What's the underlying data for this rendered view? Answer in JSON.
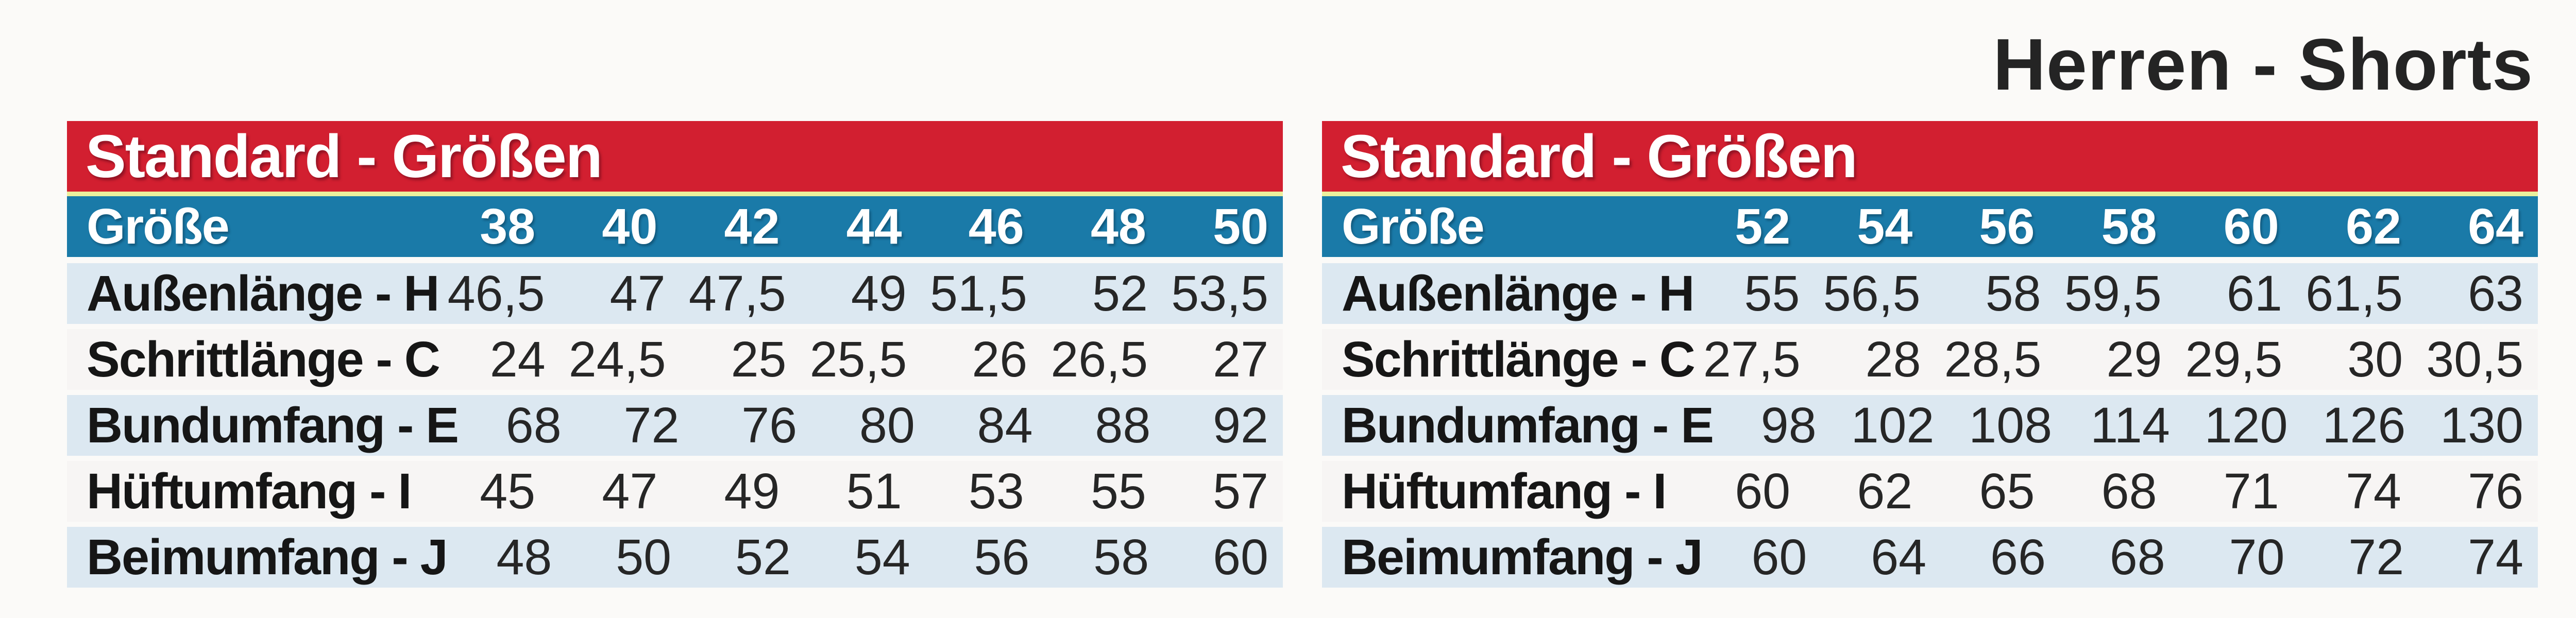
{
  "page_title": "Herren - Shorts",
  "colors": {
    "header_red": "#d21f30",
    "band_blue": "#1a7aa8",
    "divider_yellow": "#ecef9d",
    "row_lightblue": "#dce8f1",
    "row_white": "#f7f5f4",
    "page_bg": "#fbfaf8",
    "title_color": "#242424"
  },
  "tables": [
    {
      "header": "Standard - Größen",
      "size_label": "Größe",
      "sizes": [
        "38",
        "40",
        "42",
        "44",
        "46",
        "48",
        "50"
      ],
      "rows": [
        {
          "label": "Außenlänge - H",
          "values": [
            "46,5",
            "47",
            "47,5",
            "49",
            "51,5",
            "52",
            "53,5"
          ]
        },
        {
          "label": "Schrittlänge - C",
          "values": [
            "24",
            "24,5",
            "25",
            "25,5",
            "26",
            "26,5",
            "27"
          ]
        },
        {
          "label": "Bundumfang - E",
          "values": [
            "68",
            "72",
            "76",
            "80",
            "84",
            "88",
            "92"
          ]
        },
        {
          "label": "Hüftumfang - I",
          "values": [
            "45",
            "47",
            "49",
            "51",
            "53",
            "55",
            "57"
          ]
        },
        {
          "label": "Beimumfang - J",
          "values": [
            "48",
            "50",
            "52",
            "54",
            "56",
            "58",
            "60"
          ]
        }
      ]
    },
    {
      "header": "Standard - Größen",
      "size_label": "Größe",
      "sizes": [
        "52",
        "54",
        "56",
        "58",
        "60",
        "62",
        "64"
      ],
      "rows": [
        {
          "label": "Außenlänge - H",
          "values": [
            "55",
            "56,5",
            "58",
            "59,5",
            "61",
            "61,5",
            "63"
          ]
        },
        {
          "label": "Schrittlänge - C",
          "values": [
            "27,5",
            "28",
            "28,5",
            "29",
            "29,5",
            "30",
            "30,5"
          ]
        },
        {
          "label": "Bundumfang - E",
          "values": [
            "98",
            "102",
            "108",
            "114",
            "120",
            "126",
            "130"
          ]
        },
        {
          "label": "Hüftumfang - I",
          "values": [
            "60",
            "62",
            "65",
            "68",
            "71",
            "74",
            "76"
          ]
        },
        {
          "label": "Beimumfang - J",
          "values": [
            "60",
            "64",
            "66",
            "68",
            "70",
            "72",
            "74"
          ]
        }
      ]
    }
  ]
}
